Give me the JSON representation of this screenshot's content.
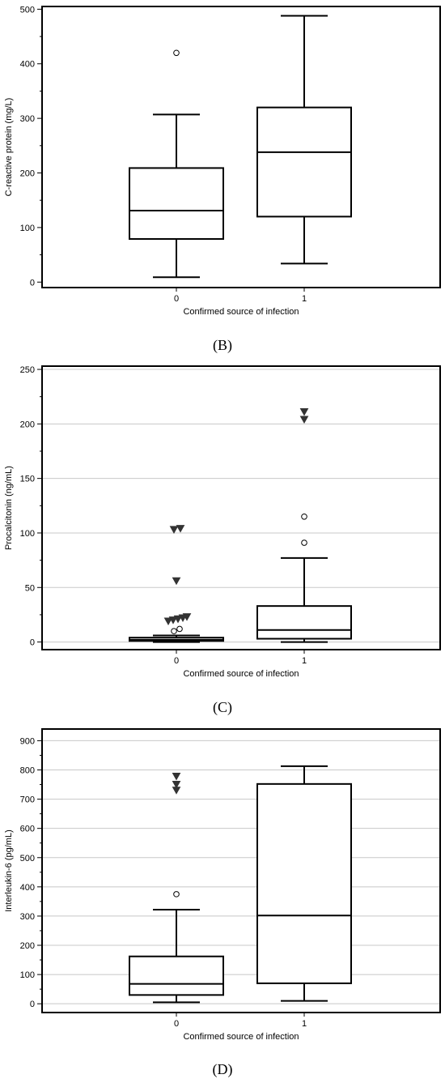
{
  "panels": [
    "(B)",
    "(C)",
    "(D)"
  ],
  "chart_data": [
    {
      "type": "box",
      "xlabel": "Confirmed source of infection",
      "ylabel": "C-reactive protein (mg/L)",
      "ylim": [
        -10,
        505
      ],
      "yticks": [
        0,
        100,
        200,
        300,
        400,
        500
      ],
      "grid": false,
      "categories": [
        "0",
        "1"
      ],
      "boxes": [
        {
          "category": "0",
          "whisker_low": 9,
          "q1": 79,
          "median": 131,
          "q3": 209,
          "whisker_high": 307,
          "outliers_circle": [
            420
          ],
          "outliers_triangle": []
        },
        {
          "category": "1",
          "whisker_low": 34,
          "q1": 120,
          "median": 238,
          "q3": 320,
          "whisker_high": 488,
          "outliers_circle": [],
          "outliers_triangle": []
        }
      ]
    },
    {
      "type": "box",
      "xlabel": "Confirmed source of infection",
      "ylabel": "Procalcitonin (ng/mL)",
      "ylim": [
        -7,
        253
      ],
      "yticks": [
        0,
        50,
        100,
        150,
        200,
        250
      ],
      "grid": true,
      "categories": [
        "0",
        "1"
      ],
      "boxes": [
        {
          "category": "0",
          "whisker_low": 0,
          "q1": 1,
          "median": 2,
          "q3": 4,
          "whisker_high": 6,
          "outliers_circle": [
            10,
            12
          ],
          "outliers_triangle": [
            19,
            20,
            21,
            22,
            23,
            56,
            103,
            104
          ]
        },
        {
          "category": "1",
          "whisker_low": 0,
          "q1": 3,
          "median": 11,
          "q3": 33,
          "whisker_high": 77,
          "outliers_circle": [
            91,
            115
          ],
          "outliers_triangle": [
            204,
            211
          ]
        }
      ]
    },
    {
      "type": "box",
      "xlabel": "Confirmed source of infection",
      "ylabel": "Interleukin-6 (pg/mL)",
      "ylim": [
        -30,
        940
      ],
      "yticks": [
        0,
        100,
        200,
        300,
        400,
        500,
        600,
        700,
        800,
        900
      ],
      "grid": true,
      "categories": [
        "0",
        "1"
      ],
      "boxes": [
        {
          "category": "0",
          "whisker_low": 5,
          "q1": 30,
          "median": 68,
          "q3": 162,
          "whisker_high": 322,
          "outliers_circle": [
            375
          ],
          "outliers_triangle": [
            730,
            750,
            778
          ]
        },
        {
          "category": "1",
          "whisker_low": 10,
          "q1": 70,
          "median": 302,
          "q3": 752,
          "whisker_high": 813,
          "outliers_circle": [],
          "outliers_triangle": []
        }
      ]
    }
  ]
}
